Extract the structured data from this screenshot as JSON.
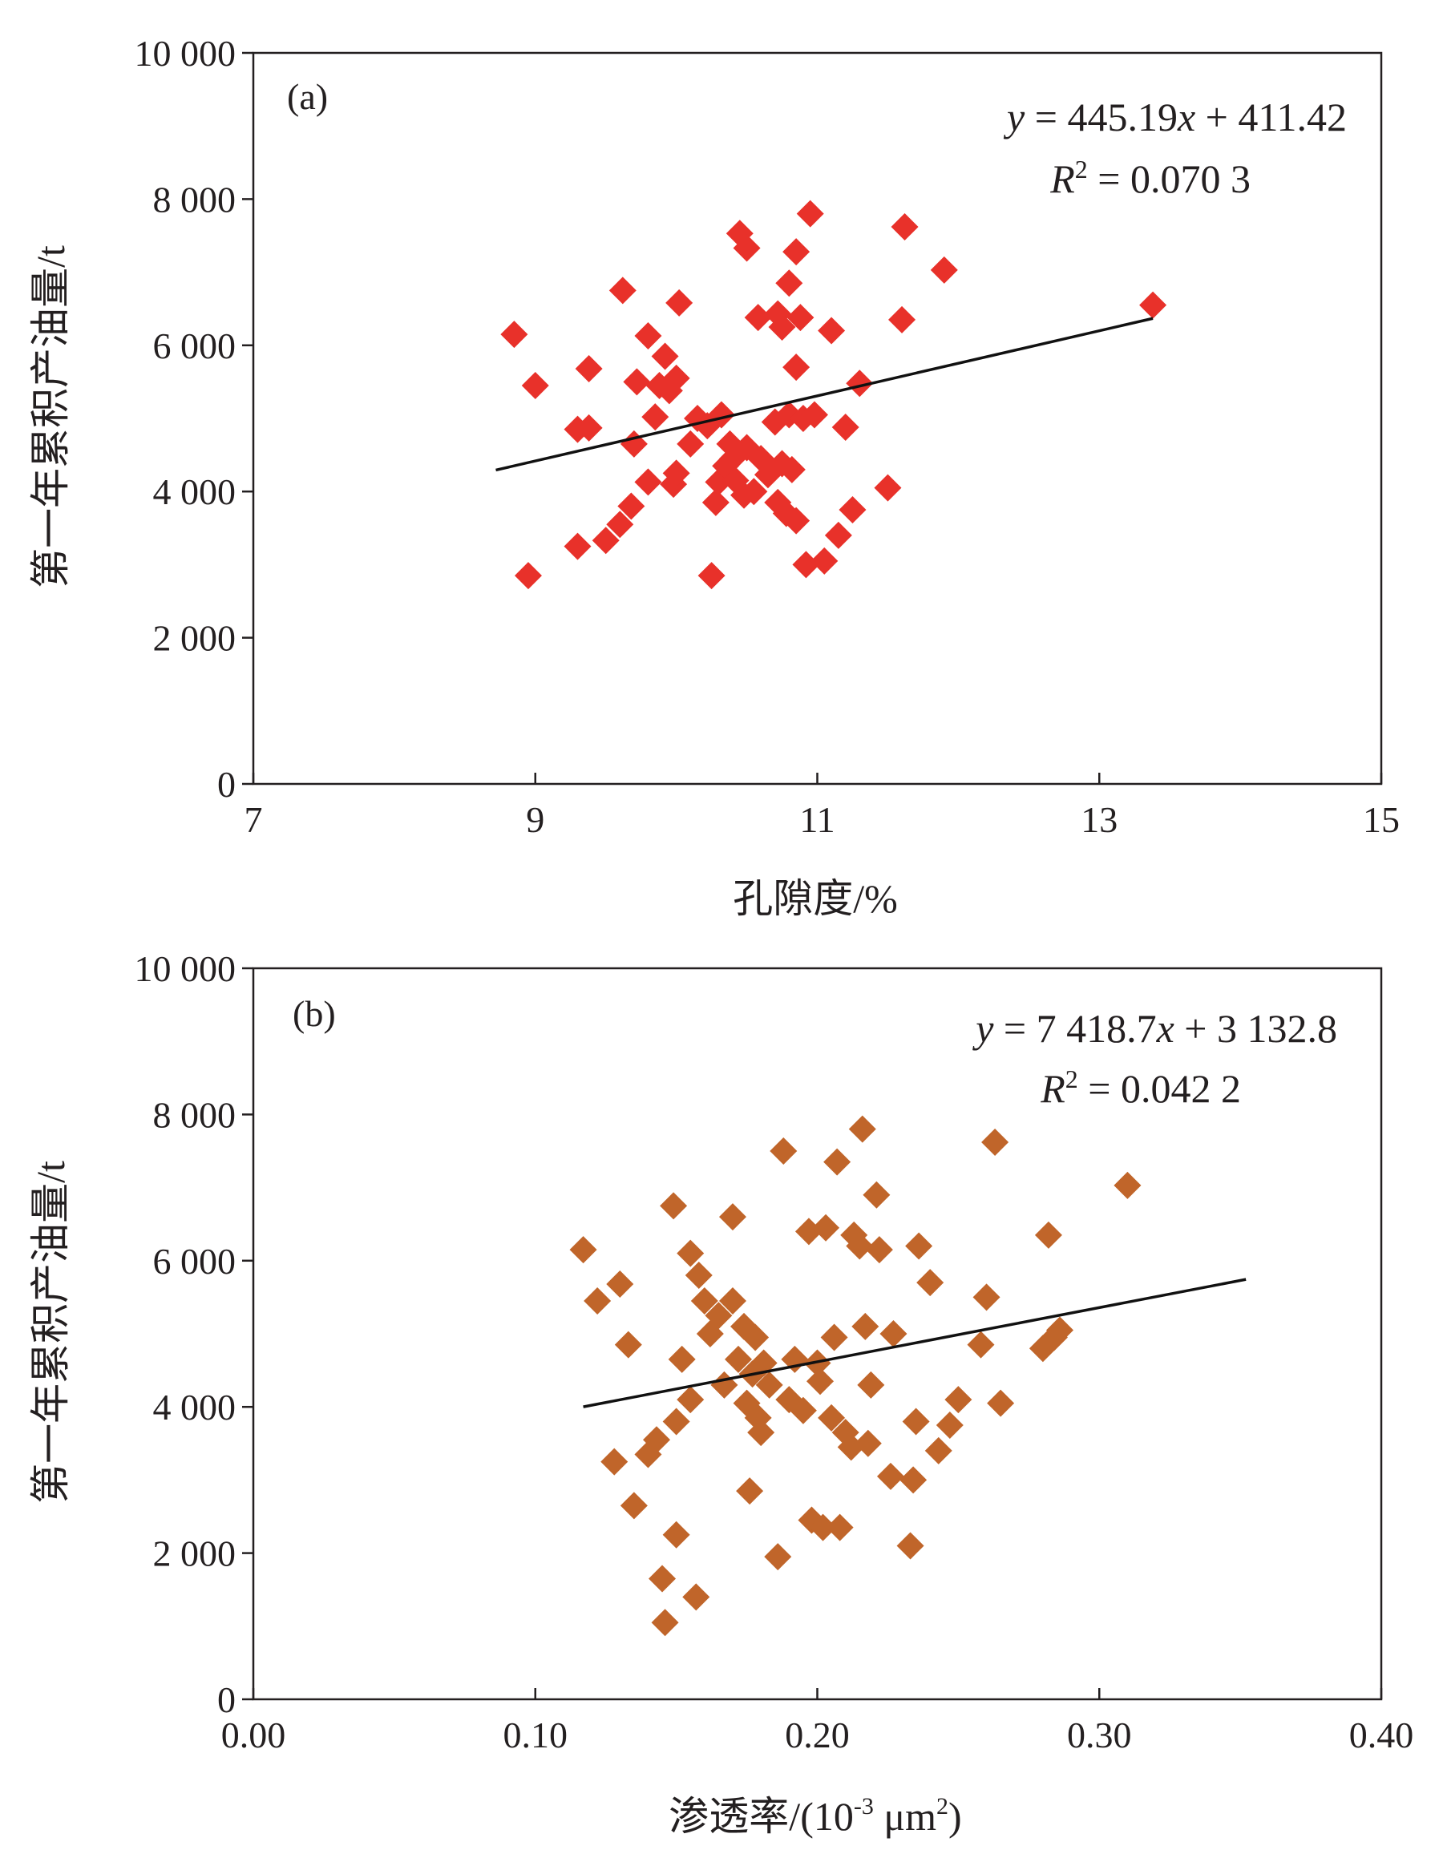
{
  "chart_data": [
    {
      "type": "scatter",
      "panel_label": "(a)",
      "xlabel": "孔隙度/%",
      "ylabel": "第一年累积产油量/t",
      "xlim": [
        7,
        15
      ],
      "ylim": [
        0,
        10000
      ],
      "xticks": [
        7,
        9,
        11,
        13,
        15
      ],
      "xtick_labels": [
        "7",
        "9",
        "11",
        "13",
        "15"
      ],
      "yticks": [
        0,
        2000,
        4000,
        6000,
        8000,
        10000
      ],
      "ytick_labels": [
        "0",
        "2 000",
        "4 000",
        "6 000",
        "8 000",
        "10 000"
      ],
      "marker_color": "#e8312a",
      "grid": false,
      "trendline": {
        "equation_y": "y",
        "equation_rhs_1": " = 445.19",
        "equation_x": "x",
        "equation_rhs_2": " + 411.42",
        "r2_label": "R",
        "r2_sup": "2",
        "r2_value": " = 0.070 3",
        "slope": 445.19,
        "intercept": 411.42,
        "x_range": [
          8.72,
          13.38
        ]
      },
      "points": [
        {
          "x": 8.85,
          "y": 6150
        },
        {
          "x": 9.0,
          "y": 5450
        },
        {
          "x": 8.95,
          "y": 2850
        },
        {
          "x": 9.3,
          "y": 3250
        },
        {
          "x": 9.3,
          "y": 4850
        },
        {
          "x": 9.38,
          "y": 4870
        },
        {
          "x": 9.38,
          "y": 5680
        },
        {
          "x": 9.5,
          "y": 3330
        },
        {
          "x": 9.6,
          "y": 3550
        },
        {
          "x": 9.62,
          "y": 6750
        },
        {
          "x": 9.68,
          "y": 3800
        },
        {
          "x": 9.7,
          "y": 4650
        },
        {
          "x": 9.72,
          "y": 5500
        },
        {
          "x": 9.8,
          "y": 4130
        },
        {
          "x": 9.8,
          "y": 6130
        },
        {
          "x": 9.85,
          "y": 5020
        },
        {
          "x": 9.88,
          "y": 5450
        },
        {
          "x": 9.92,
          "y": 5850
        },
        {
          "x": 9.95,
          "y": 5380
        },
        {
          "x": 9.98,
          "y": 4100
        },
        {
          "x": 10.0,
          "y": 4250
        },
        {
          "x": 10.0,
          "y": 5550
        },
        {
          "x": 10.02,
          "y": 6580
        },
        {
          "x": 10.1,
          "y": 4650
        },
        {
          "x": 10.15,
          "y": 5000
        },
        {
          "x": 10.22,
          "y": 4900
        },
        {
          "x": 10.25,
          "y": 2850
        },
        {
          "x": 10.28,
          "y": 3850
        },
        {
          "x": 10.3,
          "y": 4130
        },
        {
          "x": 10.32,
          "y": 5050
        },
        {
          "x": 10.35,
          "y": 4350
        },
        {
          "x": 10.38,
          "y": 4650
        },
        {
          "x": 10.4,
          "y": 4450
        },
        {
          "x": 10.42,
          "y": 4150
        },
        {
          "x": 10.45,
          "y": 7530
        },
        {
          "x": 10.48,
          "y": 3950
        },
        {
          "x": 10.5,
          "y": 7330
        },
        {
          "x": 10.5,
          "y": 4600
        },
        {
          "x": 10.55,
          "y": 4000
        },
        {
          "x": 10.58,
          "y": 6380
        },
        {
          "x": 10.6,
          "y": 4450
        },
        {
          "x": 10.65,
          "y": 4230
        },
        {
          "x": 10.7,
          "y": 4950
        },
        {
          "x": 10.72,
          "y": 6430
        },
        {
          "x": 10.72,
          "y": 3850
        },
        {
          "x": 10.75,
          "y": 6250
        },
        {
          "x": 10.75,
          "y": 4380
        },
        {
          "x": 10.78,
          "y": 3700
        },
        {
          "x": 10.8,
          "y": 5050
        },
        {
          "x": 10.8,
          "y": 6850
        },
        {
          "x": 10.82,
          "y": 4300
        },
        {
          "x": 10.85,
          "y": 3600
        },
        {
          "x": 10.85,
          "y": 5700
        },
        {
          "x": 10.85,
          "y": 7280
        },
        {
          "x": 10.88,
          "y": 6380
        },
        {
          "x": 10.9,
          "y": 5000
        },
        {
          "x": 10.92,
          "y": 3000
        },
        {
          "x": 10.95,
          "y": 7800
        },
        {
          "x": 10.98,
          "y": 5050
        },
        {
          "x": 11.05,
          "y": 3050
        },
        {
          "x": 11.1,
          "y": 6200
        },
        {
          "x": 11.15,
          "y": 3400
        },
        {
          "x": 11.2,
          "y": 4880
        },
        {
          "x": 11.25,
          "y": 3750
        },
        {
          "x": 11.3,
          "y": 5480
        },
        {
          "x": 11.5,
          "y": 4050
        },
        {
          "x": 11.6,
          "y": 6350
        },
        {
          "x": 11.62,
          "y": 7620
        },
        {
          "x": 11.9,
          "y": 7030
        },
        {
          "x": 13.38,
          "y": 6550
        }
      ]
    },
    {
      "type": "scatter",
      "panel_label": "(b)",
      "xlabel_main": "渗透率/(10",
      "xlabel_sup1": "-3",
      "xlabel_mid": " μm",
      "xlabel_sup2": "2",
      "xlabel_end": ")",
      "ylabel": "第一年累积产油量/t",
      "xlim": [
        0.0,
        0.4
      ],
      "ylim": [
        0,
        10000
      ],
      "xticks": [
        0.0,
        0.1,
        0.2,
        0.3,
        0.4
      ],
      "xtick_labels": [
        "0.00",
        "0.10",
        "0.20",
        "0.30",
        "0.40"
      ],
      "yticks": [
        0,
        2000,
        4000,
        6000,
        8000,
        10000
      ],
      "ytick_labels": [
        "0",
        "2 000",
        "4 000",
        "6 000",
        "8 000",
        "10 000"
      ],
      "marker_color": "#c0652a",
      "grid": false,
      "trendline": {
        "equation_y": "y",
        "equation_rhs_1": " = 7 418.7",
        "equation_x": "x",
        "equation_rhs_2": " + 3 132.8",
        "r2_label": "R",
        "r2_sup": "2",
        "r2_value": " = 0.042 2",
        "slope": 7418.7,
        "intercept": 3132.8,
        "x_range": [
          0.117,
          0.352
        ]
      },
      "points": [
        {
          "x": 0.117,
          "y": 6150
        },
        {
          "x": 0.122,
          "y": 5450
        },
        {
          "x": 0.128,
          "y": 3250
        },
        {
          "x": 0.13,
          "y": 5680
        },
        {
          "x": 0.133,
          "y": 4850
        },
        {
          "x": 0.135,
          "y": 2650
        },
        {
          "x": 0.14,
          "y": 3350
        },
        {
          "x": 0.143,
          "y": 3550
        },
        {
          "x": 0.145,
          "y": 1650
        },
        {
          "x": 0.146,
          "y": 1050
        },
        {
          "x": 0.149,
          "y": 6750
        },
        {
          "x": 0.15,
          "y": 2250
        },
        {
          "x": 0.15,
          "y": 3800
        },
        {
          "x": 0.152,
          "y": 4650
        },
        {
          "x": 0.155,
          "y": 6100
        },
        {
          "x": 0.155,
          "y": 4100
        },
        {
          "x": 0.157,
          "y": 1400
        },
        {
          "x": 0.158,
          "y": 5800
        },
        {
          "x": 0.16,
          "y": 5450
        },
        {
          "x": 0.162,
          "y": 5000
        },
        {
          "x": 0.165,
          "y": 5250
        },
        {
          "x": 0.167,
          "y": 4300
        },
        {
          "x": 0.17,
          "y": 6600
        },
        {
          "x": 0.17,
          "y": 5450
        },
        {
          "x": 0.172,
          "y": 4650
        },
        {
          "x": 0.174,
          "y": 5100
        },
        {
          "x": 0.175,
          "y": 4050
        },
        {
          "x": 0.176,
          "y": 2850
        },
        {
          "x": 0.177,
          "y": 4450
        },
        {
          "x": 0.178,
          "y": 4950
        },
        {
          "x": 0.179,
          "y": 3850
        },
        {
          "x": 0.18,
          "y": 3650
        },
        {
          "x": 0.181,
          "y": 4600
        },
        {
          "x": 0.183,
          "y": 4300
        },
        {
          "x": 0.186,
          "y": 1950
        },
        {
          "x": 0.188,
          "y": 7500
        },
        {
          "x": 0.19,
          "y": 4100
        },
        {
          "x": 0.192,
          "y": 4650
        },
        {
          "x": 0.195,
          "y": 3950
        },
        {
          "x": 0.197,
          "y": 6400
        },
        {
          "x": 0.198,
          "y": 2450
        },
        {
          "x": 0.2,
          "y": 4600
        },
        {
          "x": 0.201,
          "y": 4350
        },
        {
          "x": 0.202,
          "y": 2350
        },
        {
          "x": 0.203,
          "y": 6450
        },
        {
          "x": 0.205,
          "y": 3850
        },
        {
          "x": 0.206,
          "y": 4950
        },
        {
          "x": 0.207,
          "y": 7350
        },
        {
          "x": 0.208,
          "y": 2350
        },
        {
          "x": 0.21,
          "y": 3650
        },
        {
          "x": 0.212,
          "y": 3450
        },
        {
          "x": 0.213,
          "y": 6350
        },
        {
          "x": 0.215,
          "y": 6200
        },
        {
          "x": 0.216,
          "y": 7800
        },
        {
          "x": 0.217,
          "y": 5100
        },
        {
          "x": 0.218,
          "y": 3500
        },
        {
          "x": 0.219,
          "y": 4300
        },
        {
          "x": 0.221,
          "y": 6900
        },
        {
          "x": 0.222,
          "y": 6150
        },
        {
          "x": 0.226,
          "y": 3050
        },
        {
          "x": 0.227,
          "y": 5000
        },
        {
          "x": 0.233,
          "y": 2100
        },
        {
          "x": 0.234,
          "y": 3000
        },
        {
          "x": 0.235,
          "y": 3800
        },
        {
          "x": 0.236,
          "y": 6200
        },
        {
          "x": 0.24,
          "y": 5700
        },
        {
          "x": 0.243,
          "y": 3400
        },
        {
          "x": 0.247,
          "y": 3750
        },
        {
          "x": 0.25,
          "y": 4100
        },
        {
          "x": 0.258,
          "y": 4850
        },
        {
          "x": 0.26,
          "y": 5500
        },
        {
          "x": 0.263,
          "y": 7620
        },
        {
          "x": 0.265,
          "y": 4050
        },
        {
          "x": 0.28,
          "y": 4800
        },
        {
          "x": 0.282,
          "y": 6350
        },
        {
          "x": 0.284,
          "y": 4950
        },
        {
          "x": 0.286,
          "y": 5050
        },
        {
          "x": 0.31,
          "y": 7030
        }
      ]
    }
  ]
}
